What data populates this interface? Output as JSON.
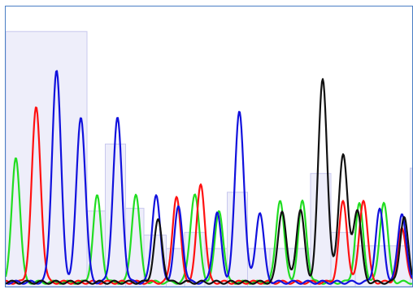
{
  "chart_data": {
    "type": "line",
    "title": "",
    "xlabel": "",
    "ylabel": "",
    "xlim": [
      0,
      100
    ],
    "ylim": [
      0,
      100
    ],
    "grid": false,
    "legend": "none",
    "quality_bars": {
      "color": "#eeeefa",
      "border": "#c8c8ee",
      "segments": [
        {
          "x0": 0.0,
          "x1": 20.0,
          "value": 94
        },
        {
          "x0": 20.0,
          "x1": 24.5,
          "value": 27
        },
        {
          "x0": 24.5,
          "x1": 29.5,
          "value": 52
        },
        {
          "x0": 29.5,
          "x1": 34.0,
          "value": 28
        },
        {
          "x0": 34.0,
          "x1": 39.5,
          "value": 18
        },
        {
          "x0": 39.5,
          "x1": 44.0,
          "value": 13
        },
        {
          "x0": 44.0,
          "x1": 49.0,
          "value": 19
        },
        {
          "x0": 49.0,
          "x1": 54.5,
          "value": 13
        },
        {
          "x0": 54.5,
          "x1": 59.5,
          "value": 34
        },
        {
          "x0": 59.5,
          "x1": 65.0,
          "value": 13
        },
        {
          "x0": 65.0,
          "x1": 75.0,
          "value": 13
        },
        {
          "x0": 75.0,
          "x1": 80.0,
          "value": 41
        },
        {
          "x0": 80.0,
          "x1": 86.0,
          "value": 19
        },
        {
          "x0": 86.0,
          "x1": 99.5,
          "value": 14
        },
        {
          "x0": 99.5,
          "x1": 100.0,
          "value": 43
        }
      ]
    },
    "series": [
      {
        "color": "#22dd22",
        "peaks": [
          [
            2.5,
            47,
            1.0
          ],
          [
            22.5,
            32,
            1.0
          ],
          [
            32,
            33,
            1.0
          ],
          [
            46.5,
            33,
            1.1
          ],
          [
            52.5,
            27,
            1.0
          ],
          [
            67.5,
            31,
            1.0
          ],
          [
            73,
            30,
            1.0
          ],
          [
            87,
            29,
            1.0
          ],
          [
            93,
            30,
            1.0
          ]
        ]
      },
      {
        "color": "#ff1111",
        "peaks": [
          [
            7.5,
            65,
            1.1
          ],
          [
            42,
            32,
            1.0
          ],
          [
            48,
            37,
            1.0
          ],
          [
            83,
            30,
            1.0
          ],
          [
            88,
            31,
            1.0
          ],
          [
            97.5,
            20,
            1.0
          ]
        ]
      },
      {
        "color": "#1111dd",
        "peaks": [
          [
            12.5,
            79,
            1.1
          ],
          [
            18.5,
            62,
            1.1
          ],
          [
            27.5,
            61,
            1.1
          ],
          [
            37,
            33,
            1.0
          ],
          [
            42.5,
            28,
            1.0
          ],
          [
            52,
            26,
            1.0
          ],
          [
            57.5,
            64,
            1.1
          ],
          [
            62.5,
            26,
            1.0
          ],
          [
            92,
            27,
            1.0
          ],
          [
            97.5,
            26,
            1.0
          ]
        ]
      },
      {
        "color": "#111111",
        "peaks": [
          [
            37.5,
            23,
            1.0
          ],
          [
            68,
            27,
            1.0
          ],
          [
            72.5,
            27,
            1.0
          ],
          [
            78,
            76,
            1.1
          ],
          [
            83,
            48,
            1.1
          ],
          [
            86.5,
            27,
            1.0
          ],
          [
            98,
            24,
            1.0
          ]
        ]
      }
    ]
  }
}
